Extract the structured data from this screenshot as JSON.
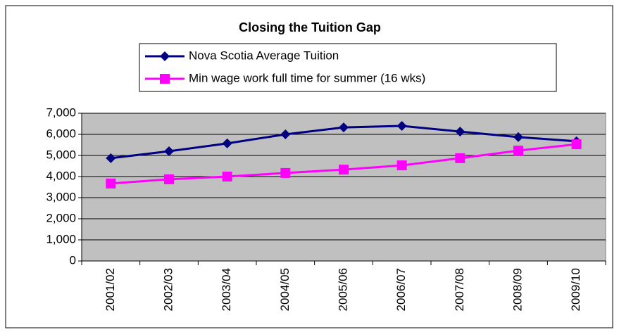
{
  "chart_data": {
    "type": "line",
    "title": "Closing the Tuition Gap",
    "categories": [
      "2001/02",
      "2002/03",
      "2003/04",
      "2004/05",
      "2005/06",
      "2006/07",
      "2007/08",
      "2008/09",
      "2009/10"
    ],
    "series": [
      {
        "name": "Nova Scotia Average Tuition",
        "color": "#000080",
        "marker": "diamond",
        "values": [
          4870,
          5200,
          5570,
          6000,
          6330,
          6400,
          6130,
          5870,
          5670
        ]
      },
      {
        "name": "Min wage work full time for summer (16 wks)",
        "color": "#ff00ff",
        "marker": "square",
        "values": [
          3670,
          3870,
          4000,
          4170,
          4330,
          4530,
          4870,
          5230,
          5530
        ]
      }
    ],
    "ylim": [
      0,
      7000
    ],
    "yticks": [
      0,
      {
        "value": 1000,
        "label": "1,000"
      },
      {
        "value": 2000,
        "label": "2,000"
      },
      {
        "value": 3000,
        "label": "3,000"
      },
      {
        "value": 4000,
        "label": "4,000"
      },
      {
        "value": 5000,
        "label": "5,000"
      },
      {
        "value": 6000,
        "label": "6,000"
      },
      {
        "value": 7000,
        "label": "7,000"
      }
    ],
    "grid": true,
    "plot_background": "#c0c0c0",
    "legend": "top"
  }
}
